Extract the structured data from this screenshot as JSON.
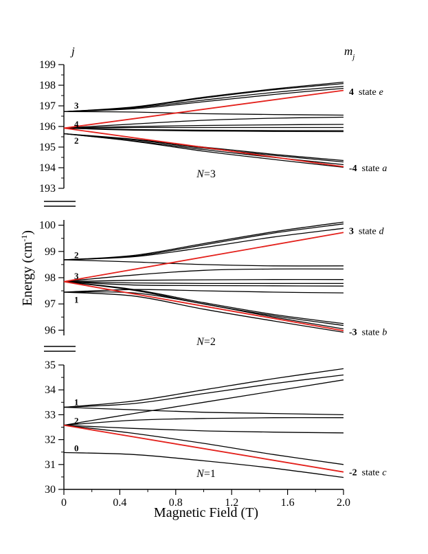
{
  "chart_data": {
    "type": "line",
    "xlabel": "Magnetic Field (T)",
    "ylabel": "Energy (cm",
    "ylabel_sup": "-1",
    "ylabel_close": ")",
    "header": {
      "left": "j",
      "right_main": "m",
      "right_sub": "j"
    },
    "x_ticks": [
      "0",
      "0.4",
      "0.8",
      "1.2",
      "1.6",
      "2.0"
    ],
    "xlim": [
      0,
      2.0
    ],
    "panels": [
      {
        "id": "n3",
        "label_var": "N",
        "label_val": "=3",
        "ylim": [
          193,
          199
        ],
        "y_ticks": [
          193,
          194,
          195,
          196,
          197,
          198,
          199
        ],
        "j_labels": [
          {
            "text": "3",
            "energy": 197.0
          },
          {
            "text": "4",
            "energy": 196.1
          },
          {
            "text": "2",
            "energy": 195.3
          }
        ],
        "right_labels": [
          {
            "mj": "4",
            "state": "state",
            "letter": "e",
            "energy": 197.7
          },
          {
            "mj": "-4",
            "state": "state",
            "letter": "a",
            "energy": 194.0
          }
        ],
        "series": [
          {
            "name": "j3 upper",
            "color": "#000000",
            "x": [
              0,
              0.5,
              1,
              1.5,
              2
            ],
            "y": [
              196.72,
              196.95,
              197.42,
              197.82,
              198.15
            ]
          },
          {
            "name": "j3 upper b",
            "color": "#000000",
            "x": [
              0,
              0.5,
              1,
              1.5,
              2
            ],
            "y": [
              196.72,
              196.93,
              197.38,
              197.78,
              198.08
            ]
          },
          {
            "name": "j3 upper c",
            "color": "#000000",
            "x": [
              0,
              0.5,
              1,
              1.5,
              2
            ],
            "y": [
              196.72,
              196.9,
              197.28,
              197.65,
              197.95
            ]
          },
          {
            "name": "j3 upper d",
            "color": "#000000",
            "x": [
              0,
              0.5,
              1,
              1.5,
              2
            ],
            "y": [
              196.72,
              196.86,
              197.2,
              197.55,
              197.85
            ]
          },
          {
            "name": "j3 flat",
            "color": "#000000",
            "x": [
              0,
              0.5,
              1,
              1.5,
              2
            ],
            "y": [
              196.72,
              196.7,
              196.62,
              196.58,
              196.55
            ]
          },
          {
            "name": "j4 a",
            "color": "#000000",
            "x": [
              0,
              0.5,
              1,
              1.5,
              2
            ],
            "y": [
              195.92,
              196.12,
              196.3,
              196.4,
              196.45
            ]
          },
          {
            "name": "j4 b",
            "color": "#000000",
            "x": [
              0,
              0.5,
              1,
              1.5,
              2
            ],
            "y": [
              195.92,
              196.0,
              196.05,
              196.08,
              196.1
            ]
          },
          {
            "name": "j4 c",
            "color": "#000000",
            "x": [
              0,
              0.5,
              1,
              1.5,
              2
            ],
            "y": [
              195.92,
              195.95,
              195.95,
              195.95,
              195.95
            ]
          },
          {
            "name": "j4 d",
            "color": "#000000",
            "x": [
              0,
              0.5,
              1,
              1.5,
              2
            ],
            "y": [
              195.92,
              195.85,
              195.82,
              195.8,
              195.8
            ]
          },
          {
            "name": "j4 e",
            "color": "#000000",
            "x": [
              0,
              0.5,
              1,
              1.5,
              2
            ],
            "y": [
              195.92,
              195.82,
              195.78,
              195.76,
              195.75
            ]
          },
          {
            "name": "j2 a",
            "color": "#000000",
            "x": [
              0,
              0.5,
              1,
              1.5,
              2
            ],
            "y": [
              195.65,
              195.38,
              195.0,
              194.65,
              194.35
            ]
          },
          {
            "name": "j2 b",
            "color": "#000000",
            "x": [
              0,
              0.5,
              1,
              1.5,
              2
            ],
            "y": [
              195.65,
              195.35,
              194.95,
              194.6,
              194.28
            ]
          },
          {
            "name": "j2 c",
            "color": "#000000",
            "x": [
              0,
              0.5,
              1,
              1.5,
              2
            ],
            "y": [
              195.65,
              195.3,
              194.88,
              194.5,
              194.15
            ]
          },
          {
            "name": "j2 d",
            "color": "#000000",
            "x": [
              0,
              0.5,
              1,
              1.5,
              2
            ],
            "y": [
              195.65,
              195.28,
              194.8,
              194.4,
              194.02
            ]
          },
          {
            "name": "mj=4",
            "color": "#e3201b",
            "x": [
              0,
              2
            ],
            "y": [
              195.92,
              197.75
            ]
          },
          {
            "name": "mj=-4",
            "color": "#e3201b",
            "x": [
              0,
              2
            ],
            "y": [
              195.92,
              194.05
            ]
          }
        ]
      },
      {
        "id": "n2",
        "label_var": "N",
        "label_val": "=2",
        "ylim": [
          95.8,
          100.2
        ],
        "y_ticks": [
          96,
          97,
          98,
          99,
          100
        ],
        "j_labels": [
          {
            "text": "2",
            "energy": 98.85
          },
          {
            "text": "3",
            "energy": 98.05
          },
          {
            "text": "1",
            "energy": 97.15
          }
        ],
        "right_labels": [
          {
            "mj": "3",
            "state": "state",
            "letter": "d",
            "energy": 99.8
          },
          {
            "mj": "-3",
            "state": "state",
            "letter": "b",
            "energy": 95.95
          }
        ],
        "series": [
          {
            "name": "j2 a",
            "color": "#000000",
            "x": [
              0,
              0.5,
              1,
              1.5,
              2
            ],
            "y": [
              98.68,
              98.85,
              99.3,
              99.75,
              100.12
            ]
          },
          {
            "name": "j2 b",
            "color": "#000000",
            "x": [
              0,
              0.5,
              1,
              1.5,
              2
            ],
            "y": [
              98.68,
              98.82,
              99.25,
              99.7,
              100.05
            ]
          },
          {
            "name": "j2 c",
            "color": "#000000",
            "x": [
              0,
              0.5,
              1,
              1.5,
              2
            ],
            "y": [
              98.68,
              98.8,
              99.15,
              99.55,
              99.88
            ]
          },
          {
            "name": "j2 flat",
            "color": "#000000",
            "x": [
              0,
              0.5,
              1,
              1.5,
              2
            ],
            "y": [
              98.68,
              98.6,
              98.5,
              98.45,
              98.45
            ]
          },
          {
            "name": "j3 a",
            "color": "#000000",
            "x": [
              0,
              0.5,
              1,
              1.5,
              2
            ],
            "y": [
              97.85,
              98.1,
              98.28,
              98.33,
              98.33
            ]
          },
          {
            "name": "j3 b",
            "color": "#000000",
            "x": [
              0,
              0.5,
              1,
              1.5,
              2
            ],
            "y": [
              97.85,
              97.9,
              97.92,
              97.93,
              97.93
            ]
          },
          {
            "name": "j3 c",
            "color": "#000000",
            "x": [
              0,
              0.5,
              1,
              1.5,
              2
            ],
            "y": [
              97.85,
              97.8,
              97.78,
              97.78,
              97.78
            ]
          },
          {
            "name": "j3 d",
            "color": "#000000",
            "x": [
              0,
              0.5,
              1,
              1.5,
              2
            ],
            "y": [
              97.85,
              97.72,
              97.7,
              97.69,
              97.68
            ]
          },
          {
            "name": "j3 e",
            "color": "#000000",
            "x": [
              0,
              0.5,
              1,
              1.5,
              2
            ],
            "y": [
              97.85,
              97.55,
              97.05,
              96.6,
              96.25
            ]
          },
          {
            "name": "j3 f",
            "color": "#000000",
            "x": [
              0,
              0.5,
              1,
              1.5,
              2
            ],
            "y": [
              97.85,
              97.52,
              97.0,
              96.55,
              96.18
            ]
          },
          {
            "name": "j1 a",
            "color": "#000000",
            "x": [
              0,
              0.5,
              1,
              1.5,
              2
            ],
            "y": [
              97.45,
              97.55,
              97.5,
              97.45,
              97.42
            ]
          },
          {
            "name": "j1 b",
            "color": "#000000",
            "x": [
              0,
              0.5,
              1,
              1.5,
              2
            ],
            "y": [
              97.45,
              97.42,
              97.0,
              96.5,
              96.05
            ]
          },
          {
            "name": "j1 c",
            "color": "#000000",
            "x": [
              0,
              0.5,
              1,
              1.5,
              2
            ],
            "y": [
              97.45,
              97.3,
              96.8,
              96.35,
              95.92
            ]
          },
          {
            "name": "mj=3",
            "color": "#e3201b",
            "x": [
              0,
              2
            ],
            "y": [
              97.85,
              99.72
            ]
          },
          {
            "name": "mj=-3",
            "color": "#e3201b",
            "x": [
              0,
              2
            ],
            "y": [
              97.85,
              95.98
            ]
          }
        ]
      },
      {
        "id": "n1",
        "label_var": "N",
        "label_val": "=1",
        "ylim": [
          30,
          35
        ],
        "y_ticks": [
          30,
          31,
          32,
          33,
          34,
          35
        ],
        "j_labels": [
          {
            "text": "1",
            "energy": 33.5
          },
          {
            "text": "2",
            "energy": 32.75
          },
          {
            "text": "0",
            "energy": 31.65
          }
        ],
        "right_labels": [
          {
            "mj": "-2",
            "state": "state",
            "letter": "c",
            "energy": 30.7
          }
        ],
        "series": [
          {
            "name": "j1 a",
            "color": "#000000",
            "x": [
              0,
              0.5,
              1,
              1.5,
              2
            ],
            "y": [
              33.3,
              33.55,
              34.0,
              34.45,
              34.85
            ]
          },
          {
            "name": "j1 b",
            "color": "#000000",
            "x": [
              0,
              0.5,
              1,
              1.5,
              2
            ],
            "y": [
              33.3,
              33.45,
              33.85,
              34.25,
              34.6
            ]
          },
          {
            "name": "j1 flat",
            "color": "#000000",
            "x": [
              0,
              0.5,
              1,
              1.5,
              2
            ],
            "y": [
              33.3,
              33.2,
              33.1,
              33.05,
              33.0
            ]
          },
          {
            "name": "j2 up",
            "color": "#000000",
            "x": [
              0,
              0.5,
              1,
              1.5,
              2
            ],
            "y": [
              32.58,
              33.05,
              33.5,
              33.95,
              34.4
            ]
          },
          {
            "name": "j2 b",
            "color": "#000000",
            "x": [
              0,
              0.5,
              1,
              1.5,
              2
            ],
            "y": [
              32.58,
              32.78,
              32.85,
              32.88,
              32.88
            ]
          },
          {
            "name": "j2 c",
            "color": "#000000",
            "x": [
              0,
              0.5,
              1,
              1.5,
              2
            ],
            "y": [
              32.58,
              32.45,
              32.35,
              32.3,
              32.27
            ]
          },
          {
            "name": "j2 d",
            "color": "#000000",
            "x": [
              0,
              0.5,
              1,
              1.5,
              2
            ],
            "y": [
              32.58,
              32.25,
              31.85,
              31.4,
              31.0
            ]
          },
          {
            "name": "j0",
            "color": "#000000",
            "x": [
              0,
              0.5,
              1,
              1.5,
              2
            ],
            "y": [
              31.48,
              31.4,
              31.15,
              30.85,
              30.48
            ]
          },
          {
            "name": "mj=-2",
            "color": "#e3201b",
            "x": [
              0,
              2
            ],
            "y": [
              32.58,
              30.7
            ]
          }
        ]
      }
    ]
  }
}
